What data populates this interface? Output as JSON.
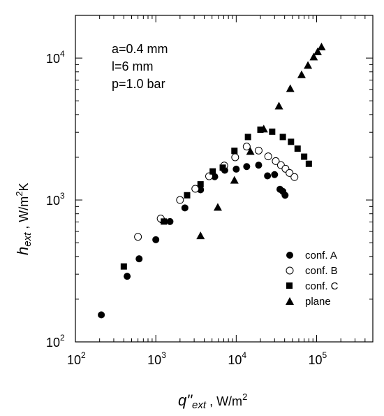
{
  "chart_data": {
    "type": "scatter",
    "xscale": "log",
    "yscale": "log",
    "xlim": [
      100,
      500000
    ],
    "ylim": [
      100,
      20000
    ],
    "xlabel_main": "q\"",
    "xlabel_sub": "ext",
    "xlabel_unit": " , W/m",
    "xlabel_unit_sup": "2",
    "ylabel_main": "h",
    "ylabel_sub": "ext",
    "ylabel_unit": " , W/m",
    "ylabel_unit_sup": "2",
    "ylabel_unit_end": "K",
    "x_ticks": [
      {
        "value": 100,
        "base": "10",
        "exp": "2"
      },
      {
        "value": 1000,
        "base": "10",
        "exp": "3"
      },
      {
        "value": 10000,
        "base": "10",
        "exp": "4"
      },
      {
        "value": 100000,
        "base": "10",
        "exp": "5"
      }
    ],
    "y_ticks": [
      {
        "value": 100,
        "base": "10",
        "exp": "2"
      },
      {
        "value": 1000,
        "base": "10",
        "exp": "3"
      },
      {
        "value": 10000,
        "base": "10",
        "exp": "4"
      }
    ],
    "annotations": [
      "a=0.4 mm",
      "l=6 mm",
      "p=1.0 bar"
    ],
    "legend_position": "bottom-right",
    "series": [
      {
        "name": "conf. A",
        "marker": "filled-circle",
        "points": [
          [
            210,
            155
          ],
          [
            440,
            290
          ],
          [
            620,
            385
          ],
          [
            1000,
            525
          ],
          [
            1200,
            720
          ],
          [
            1500,
            705
          ],
          [
            2300,
            880
          ],
          [
            3600,
            1180
          ],
          [
            5400,
            1460
          ],
          [
            7200,
            1620
          ],
          [
            10000,
            1650
          ],
          [
            13500,
            1720
          ],
          [
            19000,
            1760
          ],
          [
            24500,
            1480
          ],
          [
            30000,
            1510
          ],
          [
            35000,
            1190
          ],
          [
            38000,
            1150
          ],
          [
            40500,
            1080
          ]
        ]
      },
      {
        "name": "conf. B",
        "marker": "open-circle",
        "points": [
          [
            600,
            550
          ],
          [
            1150,
            740
          ],
          [
            2000,
            1000
          ],
          [
            3100,
            1200
          ],
          [
            4600,
            1470
          ],
          [
            7100,
            1750
          ],
          [
            9700,
            2000
          ],
          [
            13500,
            2380
          ],
          [
            19000,
            2230
          ],
          [
            25000,
            2030
          ],
          [
            31000,
            1880
          ],
          [
            36000,
            1760
          ],
          [
            41000,
            1660
          ],
          [
            46000,
            1550
          ],
          [
            53000,
            1450
          ]
        ]
      },
      {
        "name": "conf. C",
        "marker": "filled-square",
        "points": [
          [
            400,
            340
          ],
          [
            1260,
            705
          ],
          [
            2450,
            1080
          ],
          [
            3600,
            1290
          ],
          [
            5100,
            1590
          ],
          [
            6800,
            1690
          ],
          [
            9500,
            2220
          ],
          [
            14000,
            2780
          ],
          [
            20000,
            3130
          ],
          [
            28000,
            3030
          ],
          [
            38000,
            2780
          ],
          [
            48000,
            2570
          ],
          [
            58000,
            2300
          ],
          [
            70000,
            2020
          ],
          [
            80000,
            1800
          ]
        ]
      },
      {
        "name": "plane",
        "marker": "filled-triangle",
        "points": [
          [
            3600,
            560
          ],
          [
            5900,
            890
          ],
          [
            9500,
            1380
          ],
          [
            15000,
            2200
          ],
          [
            22000,
            3170
          ],
          [
            34000,
            4600
          ],
          [
            47000,
            6100
          ],
          [
            65000,
            7650
          ],
          [
            78000,
            8900
          ],
          [
            92000,
            10200
          ],
          [
            103000,
            11100
          ],
          [
            115000,
            12000
          ]
        ]
      }
    ]
  }
}
